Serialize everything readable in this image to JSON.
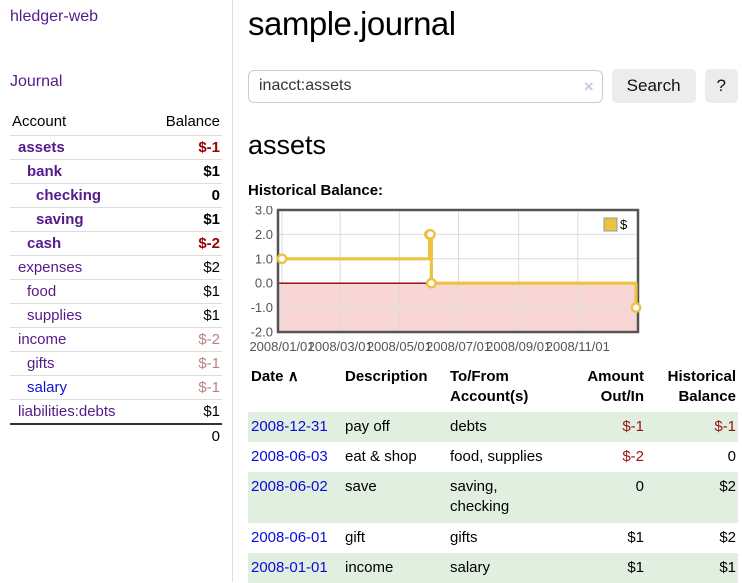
{
  "app": {
    "brand": "hledger-web",
    "nav_journal": "Journal"
  },
  "colors": {
    "link_purple": "#551a8b",
    "link_blue": "#0b0bdd",
    "negative": "#9b0000",
    "negative_muted": "#bd8181",
    "row_green": "#e0efe0",
    "chart_line": "#edc240"
  },
  "sidebar": {
    "header": {
      "account": "Account",
      "balance": "Balance"
    },
    "accounts": [
      {
        "name": "assets",
        "balance": "$-1"
      },
      {
        "name": "bank",
        "balance": "$1"
      },
      {
        "name": "checking",
        "balance": "0"
      },
      {
        "name": "saving",
        "balance": "$1"
      },
      {
        "name": "cash",
        "balance": "$-2"
      },
      {
        "name": "expenses",
        "balance": "$2"
      },
      {
        "name": "food",
        "balance": "$1"
      },
      {
        "name": "supplies",
        "balance": "$1"
      },
      {
        "name": "income",
        "balance": "$-2"
      },
      {
        "name": "gifts",
        "balance": "$-1"
      },
      {
        "name": "salary",
        "balance": "$-1"
      },
      {
        "name": "liabilities:debts",
        "balance": "$1"
      }
    ],
    "total": "0"
  },
  "header": {
    "title": "sample.journal"
  },
  "search": {
    "value": "inacct:assets",
    "clear_icon": "×",
    "button": "Search",
    "help_button": "?"
  },
  "account_page": {
    "heading": "assets",
    "chart_label": "Historical Balance:"
  },
  "chart_data": {
    "type": "line",
    "steps": true,
    "title": "Historical Balance",
    "series": [
      {
        "name": "$",
        "color": "#edc240",
        "points": [
          {
            "x": 0,
            "y": 1
          },
          {
            "x": 152,
            "y": 2
          },
          {
            "x": 153,
            "y": 2
          },
          {
            "x": 154,
            "y": 0
          },
          {
            "x": 365,
            "y": -1
          }
        ],
        "point_dates": [
          "2008-01-01",
          "2008-06-01",
          "2008-06-02",
          "2008-06-03",
          "2008-12-31"
        ]
      }
    ],
    "x_domain": [
      0,
      365
    ],
    "ylim": [
      -2,
      3
    ],
    "y_ticks": [
      3.0,
      2.0,
      1.0,
      0.0,
      -1.0,
      -2.0
    ],
    "x_ticks": [
      {
        "pos": 0,
        "label": "2008/01/01"
      },
      {
        "pos": 60,
        "label": "2008/03/01"
      },
      {
        "pos": 121,
        "label": "2008/05/01"
      },
      {
        "pos": 182,
        "label": "2008/07/01"
      },
      {
        "pos": 244,
        "label": "2008/09/01"
      },
      {
        "pos": 305,
        "label": "2008/11/01"
      }
    ],
    "legend": {
      "label": "$",
      "position": "top-right"
    },
    "grid": true,
    "negative_region_fill": "#f9d6d6",
    "zero_line_color": "#8f0000",
    "grid_color": "#dcdcdc",
    "border_color": "#545454"
  },
  "table": {
    "headers": {
      "date": "Date",
      "sort_icon": "∧",
      "description": "Description",
      "tofrom": "To/From Account(s)",
      "amount": "Amount Out/In",
      "historical": "Historical Balance"
    },
    "rows": [
      {
        "date": "2008-12-31",
        "description": "pay off",
        "tofrom": "debts",
        "amount": "$-1",
        "historical": "$-1"
      },
      {
        "date": "2008-06-03",
        "description": "eat & shop",
        "tofrom": "food, supplies",
        "amount": "$-2",
        "historical": "0"
      },
      {
        "date": "2008-06-02",
        "description": "save",
        "tofrom": "saving, checking",
        "amount": "0",
        "historical": "$2"
      },
      {
        "date": "2008-06-01",
        "description": "gift",
        "tofrom": "gifts",
        "amount": "$1",
        "historical": "$2"
      },
      {
        "date": "2008-01-01",
        "description": "income",
        "tofrom": "salary",
        "amount": "$1",
        "historical": "$1"
      }
    ]
  }
}
